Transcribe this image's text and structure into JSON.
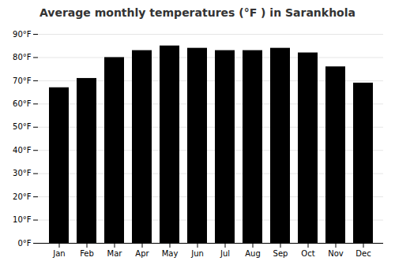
{
  "chart_data": {
    "type": "bar",
    "title": "Average monthly temperatures (°F ) in Sarankhola",
    "categories": [
      "Jan",
      "Feb",
      "Mar",
      "Apr",
      "May",
      "Jun",
      "Jul",
      "Aug",
      "Sep",
      "Oct",
      "Nov",
      "Dec"
    ],
    "values": [
      67,
      71,
      80,
      83,
      85,
      84,
      83,
      83,
      84,
      82,
      76,
      69
    ],
    "ylim": [
      0,
      90
    ],
    "yticks": [
      {
        "value": 0,
        "label": "0°F"
      },
      {
        "value": 10,
        "label": "10°F"
      },
      {
        "value": 20,
        "label": "20°F"
      },
      {
        "value": 30,
        "label": "30°F"
      },
      {
        "value": 40,
        "label": "40°F"
      },
      {
        "value": 50,
        "label": "50°F"
      },
      {
        "value": 60,
        "label": "60°F"
      },
      {
        "value": 70,
        "label": "70°F"
      },
      {
        "value": 80,
        "label": "80°F"
      },
      {
        "value": 90,
        "label": "90°F"
      }
    ],
    "grid": true
  }
}
